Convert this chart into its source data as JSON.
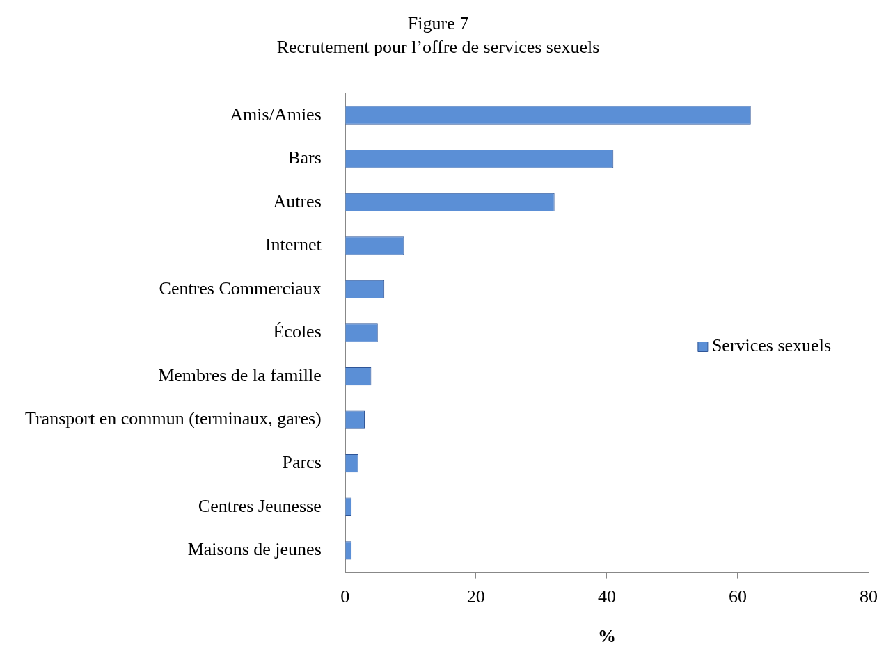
{
  "chart_data": {
    "type": "bar",
    "orientation": "horizontal",
    "title": "Figure 7",
    "subtitle": "Recrutement pour l’offre de services sexuels",
    "xlabel": "%",
    "categories": [
      "Amis/Amies",
      "Bars",
      "Autres",
      "Internet",
      "Centres Commerciaux",
      "Écoles",
      "Membres de la famille",
      "Transport en commun (terminaux, gares)",
      "Parcs",
      "Centres Jeunesse",
      "Maisons de jeunes"
    ],
    "series": [
      {
        "name": "Services sexuels",
        "color": "#5b8fd6",
        "values": [
          62,
          41,
          32,
          9,
          6,
          5,
          4,
          3,
          2,
          1,
          1
        ]
      }
    ],
    "xlim": [
      0,
      80
    ],
    "xticks": [
      0,
      20,
      40,
      60,
      80
    ],
    "grid": false,
    "legend": "right"
  }
}
